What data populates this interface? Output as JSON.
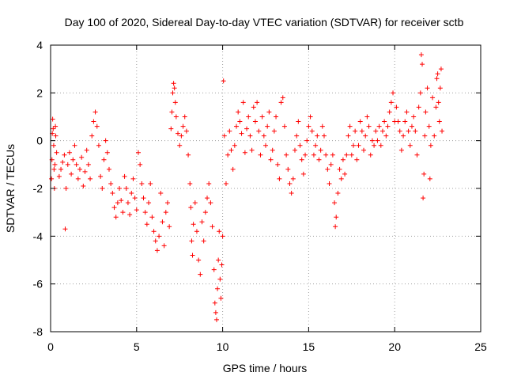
{
  "chart_data": {
    "type": "scatter",
    "title": "Day 100 of 2020, Sidereal Day-to-day VTEC variation (SDTVAR) for receiver sctb",
    "xlabel": "GPS time / hours",
    "ylabel": "SDTVAR / TECUs",
    "xlim": [
      0,
      25
    ],
    "ylim": [
      -8,
      4
    ],
    "x_ticks": [
      0,
      5,
      10,
      15,
      20,
      25
    ],
    "y_ticks": [
      -8,
      -6,
      -4,
      -2,
      0,
      2,
      4
    ],
    "grid": true,
    "marker": "+",
    "color": "#ff0000",
    "series": [
      {
        "name": "SDTVAR",
        "points": [
          [
            0.05,
            -1.6
          ],
          [
            0.08,
            -0.8
          ],
          [
            0.1,
            0.3
          ],
          [
            0.12,
            0.9
          ],
          [
            0.15,
            0.5
          ],
          [
            0.18,
            -0.2
          ],
          [
            0.2,
            -1.2
          ],
          [
            0.22,
            -2.0
          ],
          [
            0.25,
            -1.0
          ],
          [
            0.28,
            0.6
          ],
          [
            0.3,
            0.2
          ],
          [
            0.35,
            -0.5
          ],
          [
            0.5,
            -1.5
          ],
          [
            0.6,
            -1.2
          ],
          [
            0.7,
            -0.9
          ],
          [
            0.8,
            -0.6
          ],
          [
            0.85,
            -3.7
          ],
          [
            0.9,
            -2.0
          ],
          [
            1.0,
            -1.0
          ],
          [
            1.1,
            -0.5
          ],
          [
            1.2,
            -1.4
          ],
          [
            1.3,
            -0.8
          ],
          [
            1.4,
            -0.2
          ],
          [
            1.5,
            -1.0
          ],
          [
            1.6,
            -1.6
          ],
          [
            1.7,
            -1.2
          ],
          [
            1.8,
            -0.7
          ],
          [
            1.9,
            -1.9
          ],
          [
            2.0,
            -1.3
          ],
          [
            2.1,
            -0.4
          ],
          [
            2.2,
            -1.0
          ],
          [
            2.3,
            -1.6
          ],
          [
            2.4,
            0.2
          ],
          [
            2.5,
            0.8
          ],
          [
            2.6,
            1.2
          ],
          [
            2.7,
            0.6
          ],
          [
            2.8,
            -0.2
          ],
          [
            2.9,
            -1.5
          ],
          [
            3.0,
            -2.0
          ],
          [
            3.1,
            -0.8
          ],
          [
            3.2,
            0.0
          ],
          [
            3.3,
            -0.5
          ],
          [
            3.4,
            -1.2
          ],
          [
            3.5,
            -1.8
          ],
          [
            3.6,
            -2.2
          ],
          [
            3.7,
            -2.8
          ],
          [
            3.8,
            -3.2
          ],
          [
            3.9,
            -2.6
          ],
          [
            4.0,
            -2.0
          ],
          [
            4.1,
            -2.5
          ],
          [
            4.2,
            -3.0
          ],
          [
            4.3,
            -1.5
          ],
          [
            4.4,
            -2.0
          ],
          [
            4.5,
            -2.6
          ],
          [
            4.6,
            -3.1
          ],
          [
            4.7,
            -2.2
          ],
          [
            4.8,
            -1.6
          ],
          [
            4.9,
            -2.4
          ],
          [
            5.0,
            -2.9
          ],
          [
            5.1,
            -0.5
          ],
          [
            5.2,
            -1.0
          ],
          [
            5.3,
            -1.8
          ],
          [
            5.4,
            -2.4
          ],
          [
            5.5,
            -3.0
          ],
          [
            5.6,
            -3.5
          ],
          [
            5.7,
            -2.6
          ],
          [
            5.8,
            -1.8
          ],
          [
            5.9,
            -3.2
          ],
          [
            6.0,
            -3.8
          ],
          [
            6.1,
            -4.2
          ],
          [
            6.2,
            -4.6
          ],
          [
            6.3,
            -4.0
          ],
          [
            6.4,
            -2.2
          ],
          [
            6.5,
            -3.4
          ],
          [
            6.6,
            -4.4
          ],
          [
            6.7,
            -3.0
          ],
          [
            6.8,
            -2.6
          ],
          [
            6.9,
            -3.6
          ],
          [
            7.0,
            0.5
          ],
          [
            7.05,
            1.2
          ],
          [
            7.1,
            2.0
          ],
          [
            7.15,
            2.4
          ],
          [
            7.2,
            2.2
          ],
          [
            7.25,
            1.6
          ],
          [
            7.3,
            1.0
          ],
          [
            7.4,
            0.3
          ],
          [
            7.5,
            -0.2
          ],
          [
            7.6,
            0.2
          ],
          [
            7.7,
            0.6
          ],
          [
            7.8,
            1.0
          ],
          [
            7.9,
            0.4
          ],
          [
            8.0,
            -0.6
          ],
          [
            8.1,
            -1.8
          ],
          [
            8.15,
            -2.8
          ],
          [
            8.2,
            -4.2
          ],
          [
            8.25,
            -4.8
          ],
          [
            8.3,
            -3.5
          ],
          [
            8.4,
            -2.6
          ],
          [
            8.5,
            -3.8
          ],
          [
            8.6,
            -5.0
          ],
          [
            8.7,
            -5.6
          ],
          [
            8.8,
            -3.4
          ],
          [
            8.9,
            -4.2
          ],
          [
            9.0,
            -3.0
          ],
          [
            9.1,
            -2.4
          ],
          [
            9.2,
            -1.8
          ],
          [
            9.3,
            -2.6
          ],
          [
            9.4,
            -3.6
          ],
          [
            9.5,
            -5.4
          ],
          [
            9.55,
            -6.8
          ],
          [
            9.6,
            -7.2
          ],
          [
            9.65,
            -7.5
          ],
          [
            9.7,
            -6.2
          ],
          [
            9.75,
            -5.0
          ],
          [
            9.8,
            -3.8
          ],
          [
            9.85,
            -5.8
          ],
          [
            9.9,
            -6.6
          ],
          [
            9.95,
            -5.2
          ],
          [
            10.0,
            -4.0
          ],
          [
            10.05,
            2.5
          ],
          [
            10.1,
            0.2
          ],
          [
            10.2,
            -1.8
          ],
          [
            10.3,
            -0.6
          ],
          [
            10.4,
            0.4
          ],
          [
            10.5,
            -0.4
          ],
          [
            10.6,
            -1.2
          ],
          [
            10.7,
            -0.2
          ],
          [
            10.8,
            0.6
          ],
          [
            10.9,
            1.2
          ],
          [
            11.0,
            0.8
          ],
          [
            11.1,
            0.3
          ],
          [
            11.2,
            1.6
          ],
          [
            11.3,
            -0.5
          ],
          [
            11.4,
            0.5
          ],
          [
            11.5,
            1.0
          ],
          [
            11.6,
            0.2
          ],
          [
            11.7,
            -0.4
          ],
          [
            11.8,
            1.4
          ],
          [
            11.9,
            0.8
          ],
          [
            12.0,
            1.6
          ],
          [
            12.1,
            0.4
          ],
          [
            12.2,
            -0.6
          ],
          [
            12.3,
            1.0
          ],
          [
            12.4,
            0.2
          ],
          [
            12.5,
            -0.2
          ],
          [
            12.6,
            0.6
          ],
          [
            12.7,
            1.2
          ],
          [
            12.8,
            -0.8
          ],
          [
            12.9,
            -0.4
          ],
          [
            13.0,
            0.4
          ],
          [
            13.1,
            1.0
          ],
          [
            13.2,
            -1.0
          ],
          [
            13.3,
            -1.6
          ],
          [
            13.4,
            1.6
          ],
          [
            13.5,
            1.8
          ],
          [
            13.6,
            0.6
          ],
          [
            13.7,
            -0.6
          ],
          [
            13.8,
            -1.2
          ],
          [
            13.9,
            -1.8
          ],
          [
            14.0,
            -2.2
          ],
          [
            14.1,
            -1.6
          ],
          [
            14.2,
            -0.4
          ],
          [
            14.3,
            0.2
          ],
          [
            14.4,
            0.8
          ],
          [
            14.5,
            -0.2
          ],
          [
            14.6,
            -0.8
          ],
          [
            14.7,
            -1.4
          ],
          [
            14.8,
            -0.6
          ],
          [
            14.9,
            0.0
          ],
          [
            15.0,
            0.6
          ],
          [
            15.1,
            1.0
          ],
          [
            15.2,
            0.4
          ],
          [
            15.3,
            -0.6
          ],
          [
            15.4,
            -0.2
          ],
          [
            15.5,
            0.2
          ],
          [
            15.6,
            -0.8
          ],
          [
            15.7,
            -0.4
          ],
          [
            15.8,
            0.6
          ],
          [
            15.9,
            0.2
          ],
          [
            16.0,
            -0.6
          ],
          [
            16.1,
            -1.2
          ],
          [
            16.2,
            -1.8
          ],
          [
            16.3,
            -1.0
          ],
          [
            16.4,
            -0.6
          ],
          [
            16.5,
            -2.6
          ],
          [
            16.55,
            -3.6
          ],
          [
            16.6,
            -3.2
          ],
          [
            16.7,
            -2.2
          ],
          [
            16.8,
            -1.2
          ],
          [
            16.9,
            -1.6
          ],
          [
            17.0,
            -0.8
          ],
          [
            17.1,
            -1.4
          ],
          [
            17.2,
            -0.6
          ],
          [
            17.3,
            0.2
          ],
          [
            17.4,
            0.6
          ],
          [
            17.5,
            -0.6
          ],
          [
            17.6,
            -0.2
          ],
          [
            17.7,
            0.4
          ],
          [
            17.8,
            -0.8
          ],
          [
            17.9,
            -0.2
          ],
          [
            18.0,
            0.8
          ],
          [
            18.1,
            0.4
          ],
          [
            18.2,
            -0.4
          ],
          [
            18.3,
            0.2
          ],
          [
            18.4,
            1.0
          ],
          [
            18.5,
            0.6
          ],
          [
            18.6,
            -0.6
          ],
          [
            18.7,
            0.0
          ],
          [
            18.8,
            -0.2
          ],
          [
            18.9,
            0.4
          ],
          [
            19.0,
            0.0
          ],
          [
            19.1,
            0.6
          ],
          [
            19.2,
            -0.2
          ],
          [
            19.3,
            0.4
          ],
          [
            19.4,
            0.8
          ],
          [
            19.5,
            0.2
          ],
          [
            19.6,
            0.6
          ],
          [
            19.7,
            1.2
          ],
          [
            19.8,
            1.6
          ],
          [
            19.9,
            2.0
          ],
          [
            20.0,
            0.8
          ],
          [
            20.1,
            1.4
          ],
          [
            20.2,
            0.8
          ],
          [
            20.3,
            0.4
          ],
          [
            20.4,
            -0.4
          ],
          [
            20.5,
            0.2
          ],
          [
            20.6,
            0.8
          ],
          [
            20.7,
            1.2
          ],
          [
            20.8,
            0.4
          ],
          [
            20.9,
            -0.2
          ],
          [
            21.0,
            0.6
          ],
          [
            21.1,
            1.0
          ],
          [
            21.2,
            0.4
          ],
          [
            21.3,
            -0.6
          ],
          [
            21.4,
            1.4
          ],
          [
            21.5,
            2.0
          ],
          [
            21.55,
            3.6
          ],
          [
            21.6,
            3.2
          ],
          [
            21.65,
            -2.4
          ],
          [
            21.7,
            -1.4
          ],
          [
            21.75,
            0.2
          ],
          [
            21.8,
            1.2
          ],
          [
            21.9,
            2.2
          ],
          [
            22.0,
            0.6
          ],
          [
            22.05,
            -1.6
          ],
          [
            22.1,
            -0.2
          ],
          [
            22.2,
            1.8
          ],
          [
            22.3,
            0.2
          ],
          [
            22.4,
            1.4
          ],
          [
            22.45,
            2.6
          ],
          [
            22.5,
            2.8
          ],
          [
            22.55,
            1.6
          ],
          [
            22.6,
            0.8
          ],
          [
            22.65,
            2.2
          ],
          [
            22.7,
            3.0
          ],
          [
            22.75,
            0.4
          ]
        ]
      }
    ]
  }
}
